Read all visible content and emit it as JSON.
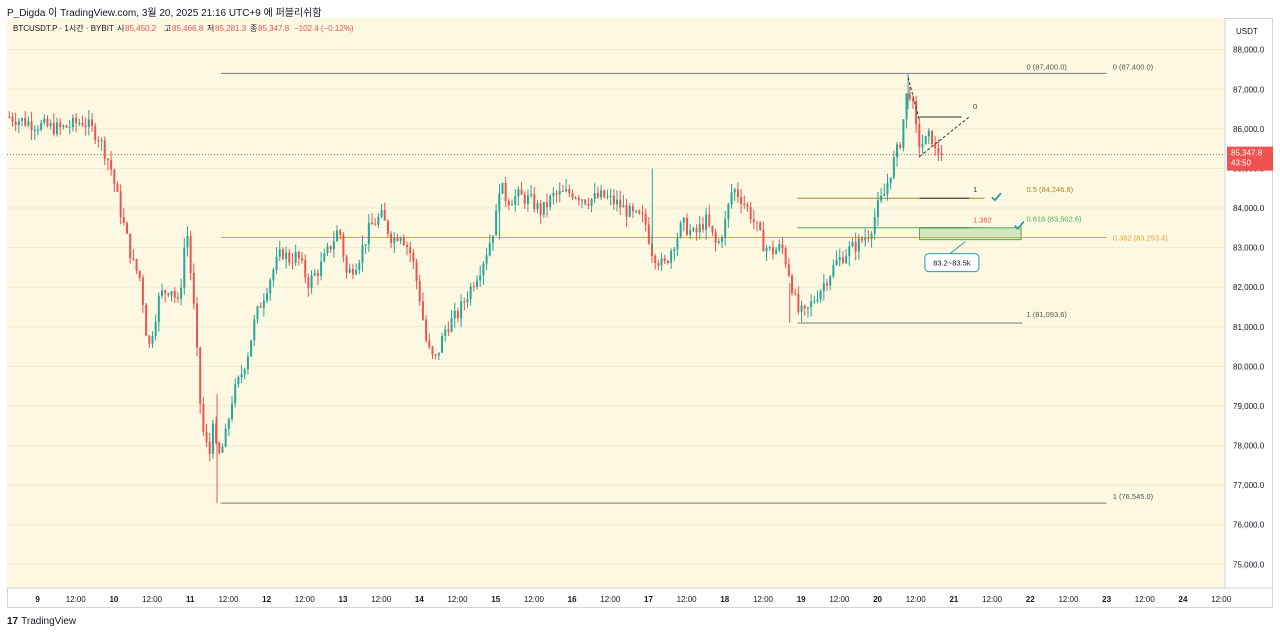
{
  "header": {
    "text": "P_Digda 이 TradingView.com, 3월 20, 2025 21:16 UTC+9 에 퍼블리쉬함"
  },
  "legend": {
    "symbol": "BTCUSDT.P · 1시간 · BYBIT",
    "open_label": "시",
    "open": "85,450.2",
    "high_label": "고",
    "high": "85,466.8",
    "low_label": "저",
    "low": "85,281.3",
    "close_label": "종",
    "close": "85,347.8",
    "change": "−102.4 (−0.12%)"
  },
  "price_axis": {
    "currency": "USDT",
    "current_price": "85,347.8",
    "countdown": "43:50"
  },
  "footer": {
    "brand": "TradingView",
    "brand_mark": "17"
  },
  "colors": {
    "up": "#26a69a",
    "down": "#ef5350",
    "background": "#fdf8e1",
    "fib_05": "#a28a1c",
    "fib_0618": "#4caf50",
    "fib_0382": "#e6a23c",
    "current_price": "#ef5350",
    "accent": "#2a9aa6"
  },
  "chart_data": {
    "type": "candlestick",
    "symbol": "BTCUSDT.P",
    "timeframe": "1시간",
    "ylim": [
      74400,
      88800
    ],
    "yticks": [
      75000,
      76000,
      77000,
      78000,
      79000,
      80000,
      81000,
      82000,
      83000,
      84000,
      85000,
      86000,
      87000,
      88000
    ],
    "ytick_labels": [
      "75,000.0",
      "76,000.0",
      "77,000.0",
      "78,000.0",
      "79,000.0",
      "80,000.0",
      "81,000.0",
      "82,000.0",
      "83,000.0",
      "84,000.0",
      "85,000.0",
      "86,000.0",
      "87,000.0",
      "88,000.0"
    ],
    "x_range_days": [
      8.6,
      24.55
    ],
    "xticks": [
      {
        "t": 9.0,
        "label": "9"
      },
      {
        "t": 9.5,
        "label": "12:00"
      },
      {
        "t": 10.0,
        "label": "10"
      },
      {
        "t": 10.5,
        "label": "12:00"
      },
      {
        "t": 11.0,
        "label": "11"
      },
      {
        "t": 11.5,
        "label": "12:00"
      },
      {
        "t": 12.0,
        "label": "12"
      },
      {
        "t": 12.5,
        "label": "12:00"
      },
      {
        "t": 13.0,
        "label": "13"
      },
      {
        "t": 13.5,
        "label": "12:00"
      },
      {
        "t": 14.0,
        "label": "14"
      },
      {
        "t": 14.5,
        "label": "12:00"
      },
      {
        "t": 15.0,
        "label": "15"
      },
      {
        "t": 15.5,
        "label": "12:00"
      },
      {
        "t": 16.0,
        "label": "16"
      },
      {
        "t": 16.5,
        "label": "12:00"
      },
      {
        "t": 17.0,
        "label": "17"
      },
      {
        "t": 17.5,
        "label": "12:00"
      },
      {
        "t": 18.0,
        "label": "18"
      },
      {
        "t": 18.5,
        "label": "12:00"
      },
      {
        "t": 19.0,
        "label": "19"
      },
      {
        "t": 19.5,
        "label": "12:00"
      },
      {
        "t": 20.0,
        "label": "20"
      },
      {
        "t": 20.5,
        "label": "12:00"
      },
      {
        "t": 21.0,
        "label": "21"
      },
      {
        "t": 21.5,
        "label": "12:00"
      },
      {
        "t": 22.0,
        "label": "22"
      },
      {
        "t": 22.5,
        "label": "12:00"
      },
      {
        "t": 23.0,
        "label": "23"
      },
      {
        "t": 23.5,
        "label": "12:00"
      },
      {
        "t": 24.0,
        "label": "24"
      },
      {
        "t": 24.5,
        "label": "12:00"
      }
    ],
    "path": [
      [
        8.63,
        86300
      ],
      [
        9.0,
        86100
      ],
      [
        9.3,
        86000
      ],
      [
        9.6,
        86200
      ],
      [
        9.8,
        85800
      ],
      [
        9.95,
        85100
      ],
      [
        10.1,
        83800
      ],
      [
        10.25,
        82600
      ],
      [
        10.35,
        82200
      ],
      [
        10.45,
        80400
      ],
      [
        10.6,
        81800
      ],
      [
        10.75,
        82000
      ],
      [
        10.85,
        81500
      ],
      [
        10.95,
        83600
      ],
      [
        11.05,
        81400
      ],
      [
        11.15,
        78500
      ],
      [
        11.25,
        77700
      ],
      [
        11.3,
        78800
      ],
      [
        11.35,
        77600
      ],
      [
        11.45,
        78100
      ],
      [
        11.55,
        79200
      ],
      [
        11.65,
        79700
      ],
      [
        11.75,
        80300
      ],
      [
        11.85,
        81200
      ],
      [
        12.0,
        82000
      ],
      [
        12.1,
        82500
      ],
      [
        12.2,
        82900
      ],
      [
        12.3,
        82700
      ],
      [
        12.4,
        82800
      ],
      [
        12.55,
        82100
      ],
      [
        12.7,
        82500
      ],
      [
        12.85,
        83100
      ],
      [
        12.95,
        83500
      ],
      [
        13.05,
        82300
      ],
      [
        13.2,
        82700
      ],
      [
        13.35,
        83500
      ],
      [
        13.5,
        83800
      ],
      [
        13.65,
        83200
      ],
      [
        13.75,
        83400
      ],
      [
        13.9,
        82800
      ],
      [
        14.0,
        81800
      ],
      [
        14.1,
        80500
      ],
      [
        14.2,
        80100
      ],
      [
        14.35,
        81000
      ],
      [
        14.5,
        81300
      ],
      [
        14.65,
        81900
      ],
      [
        14.8,
        82500
      ],
      [
        14.9,
        83000
      ],
      [
        15.0,
        83700
      ],
      [
        15.05,
        84600
      ],
      [
        15.15,
        84200
      ],
      [
        15.3,
        84300
      ],
      [
        15.45,
        84200
      ],
      [
        15.6,
        83900
      ],
      [
        15.75,
        84300
      ],
      [
        16.0,
        84400
      ],
      [
        16.2,
        84200
      ],
      [
        16.4,
        84300
      ],
      [
        16.6,
        84100
      ],
      [
        16.8,
        83800
      ],
      [
        16.95,
        83700
      ],
      [
        17.05,
        82900
      ],
      [
        17.2,
        82500
      ],
      [
        17.35,
        83200
      ],
      [
        17.45,
        83600
      ],
      [
        17.6,
        83300
      ],
      [
        17.75,
        83700
      ],
      [
        17.9,
        83000
      ],
      [
        18.0,
        83600
      ],
      [
        18.1,
        84500
      ],
      [
        18.2,
        84300
      ],
      [
        18.35,
        83800
      ],
      [
        18.5,
        83100
      ],
      [
        18.6,
        82900
      ],
      [
        18.75,
        83000
      ],
      [
        18.85,
        82300
      ],
      [
        18.95,
        81400
      ],
      [
        19.05,
        81300
      ],
      [
        19.2,
        81800
      ],
      [
        19.3,
        82100
      ],
      [
        19.45,
        82600
      ],
      [
        19.6,
        82900
      ],
      [
        19.75,
        83100
      ],
      [
        19.9,
        83400
      ],
      [
        20.0,
        84000
      ],
      [
        20.1,
        84400
      ],
      [
        20.15,
        84800
      ],
      [
        20.2,
        85100
      ],
      [
        20.3,
        85700
      ],
      [
        20.35,
        86400
      ],
      [
        20.4,
        87100
      ],
      [
        20.45,
        86700
      ],
      [
        20.5,
        86000
      ],
      [
        20.55,
        85600
      ],
      [
        20.65,
        85700
      ],
      [
        20.7,
        85900
      ],
      [
        20.75,
        85400
      ],
      [
        20.85,
        85480
      ]
    ],
    "fib_levels": [
      {
        "ratio_label": "0",
        "price": 87400.0,
        "label": "0 (87,400.0)",
        "color": "#787b86"
      },
      {
        "ratio_label": "1",
        "price": 76545.0,
        "label": "1 (76,545.0)",
        "color": "#787b86"
      },
      {
        "ratio_label": "0.382",
        "price": 83253.4,
        "label": "0.382 (83,253.4)",
        "color": "#e6a23c"
      },
      {
        "ratio_label": "0.5",
        "price": 84246.8,
        "label": "0.5 (84,246.8)",
        "color": "#a28a1c"
      },
      {
        "ratio_label": "0.618",
        "price": 83502.6,
        "label": "0.618 (83,502.6)",
        "color": "#4caf50"
      },
      {
        "ratio_label": "1",
        "price": 81093.6,
        "label": "1 (81,093.6)",
        "color": "#787b86"
      }
    ],
    "pattern_labels": [
      "0",
      "1",
      "1.382"
    ],
    "target_zone": {
      "low": 83200,
      "high": 83500,
      "label": "83.2~83.5k"
    },
    "current_price": 85347.8
  }
}
